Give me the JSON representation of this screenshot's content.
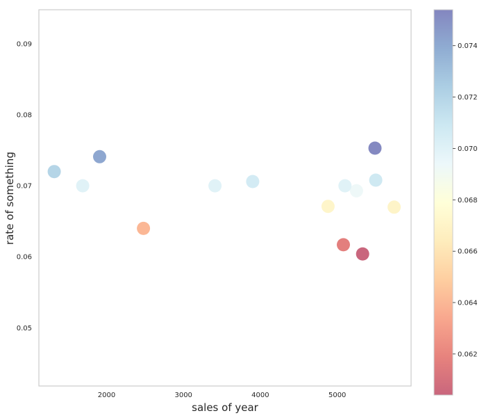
{
  "chart_data": {
    "type": "scatter",
    "title": "",
    "xlabel": "sales of year",
    "ylabel": "rate of something",
    "xlim": [
      1120,
      5960
    ],
    "ylim": [
      0.0418,
      0.0948
    ],
    "xticks": [
      2000,
      3000,
      4000,
      5000
    ],
    "yticks": [
      0.05,
      0.06,
      0.07,
      0.08,
      0.09
    ],
    "xtick_labels": [
      "2000",
      "3000",
      "4000",
      "5000"
    ],
    "ytick_labels": [
      "0.05",
      "0.06",
      "0.07",
      "0.08",
      "0.09"
    ],
    "grid": false,
    "colormap": "RdYlBu",
    "alpha": 0.6,
    "points": [
      {
        "x": 1320,
        "y": 0.072
      },
      {
        "x": 1690,
        "y": 0.07
      },
      {
        "x": 1910,
        "y": 0.0741
      },
      {
        "x": 2480,
        "y": 0.064
      },
      {
        "x": 3410,
        "y": 0.07
      },
      {
        "x": 3900,
        "y": 0.0706
      },
      {
        "x": 4880,
        "y": 0.0671
      },
      {
        "x": 5080,
        "y": 0.0617
      },
      {
        "x": 5100,
        "y": 0.07
      },
      {
        "x": 5250,
        "y": 0.0693
      },
      {
        "x": 5330,
        "y": 0.0604
      },
      {
        "x": 5490,
        "y": 0.0753
      },
      {
        "x": 5500,
        "y": 0.0708
      },
      {
        "x": 5740,
        "y": 0.067
      }
    ],
    "colorbar": {
      "range": [
        0.0604,
        0.0754
      ],
      "ticks": [
        0.062,
        0.064,
        0.066,
        0.068,
        0.07,
        0.072,
        0.074
      ],
      "tick_labels": [
        "0.062",
        "0.064",
        "0.066",
        "0.068",
        "0.070",
        "0.072",
        "0.074"
      ]
    }
  }
}
